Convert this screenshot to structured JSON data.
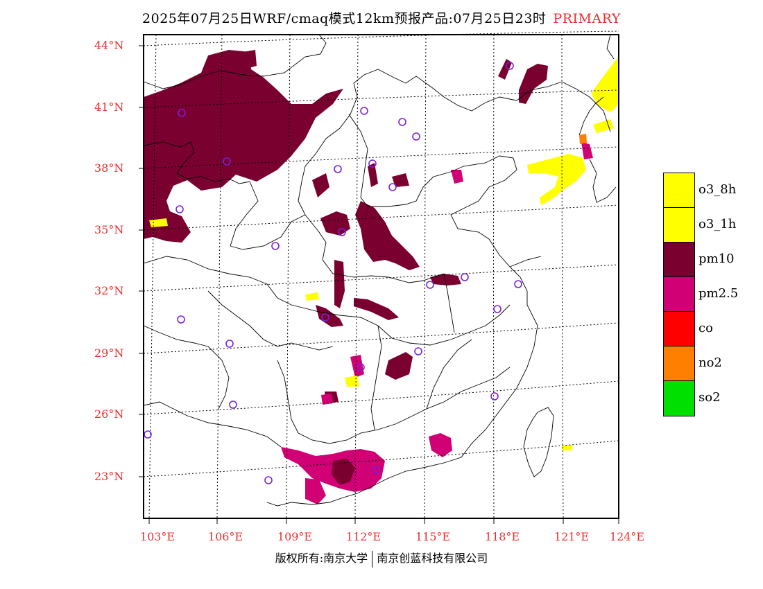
{
  "title": {
    "main": "2025年07月25日WRF/cmaq模式12km预报产品:07月25日23时",
    "tag": "PRIMARY"
  },
  "map": {
    "lat_labels": [
      "44°N",
      "41°N",
      "38°N",
      "35°N",
      "32°N",
      "29°N",
      "26°N",
      "23°N"
    ],
    "lon_labels": [
      "103°E",
      "106°E",
      "109°E",
      "112°E",
      "115°E",
      "118°E",
      "121°E",
      "124°E"
    ]
  },
  "legend": [
    {
      "label": "o3_8h",
      "color": "#ffff00"
    },
    {
      "label": "o3_1h",
      "color": "#ffff00"
    },
    {
      "label": "pm10",
      "color": "#7a0030"
    },
    {
      "label": "pm2.5",
      "color": "#d10074"
    },
    {
      "label": "co",
      "color": "#ff0000"
    },
    {
      "label": "no2",
      "color": "#ff7f00"
    },
    {
      "label": "so2",
      "color": "#00e000"
    }
  ],
  "footer": {
    "left": "版权所有:南京大学",
    "right": "南京创蓝科技有限公司"
  },
  "colors": {
    "accent": "#ef2d2d",
    "marker": "#7b1fe0"
  }
}
